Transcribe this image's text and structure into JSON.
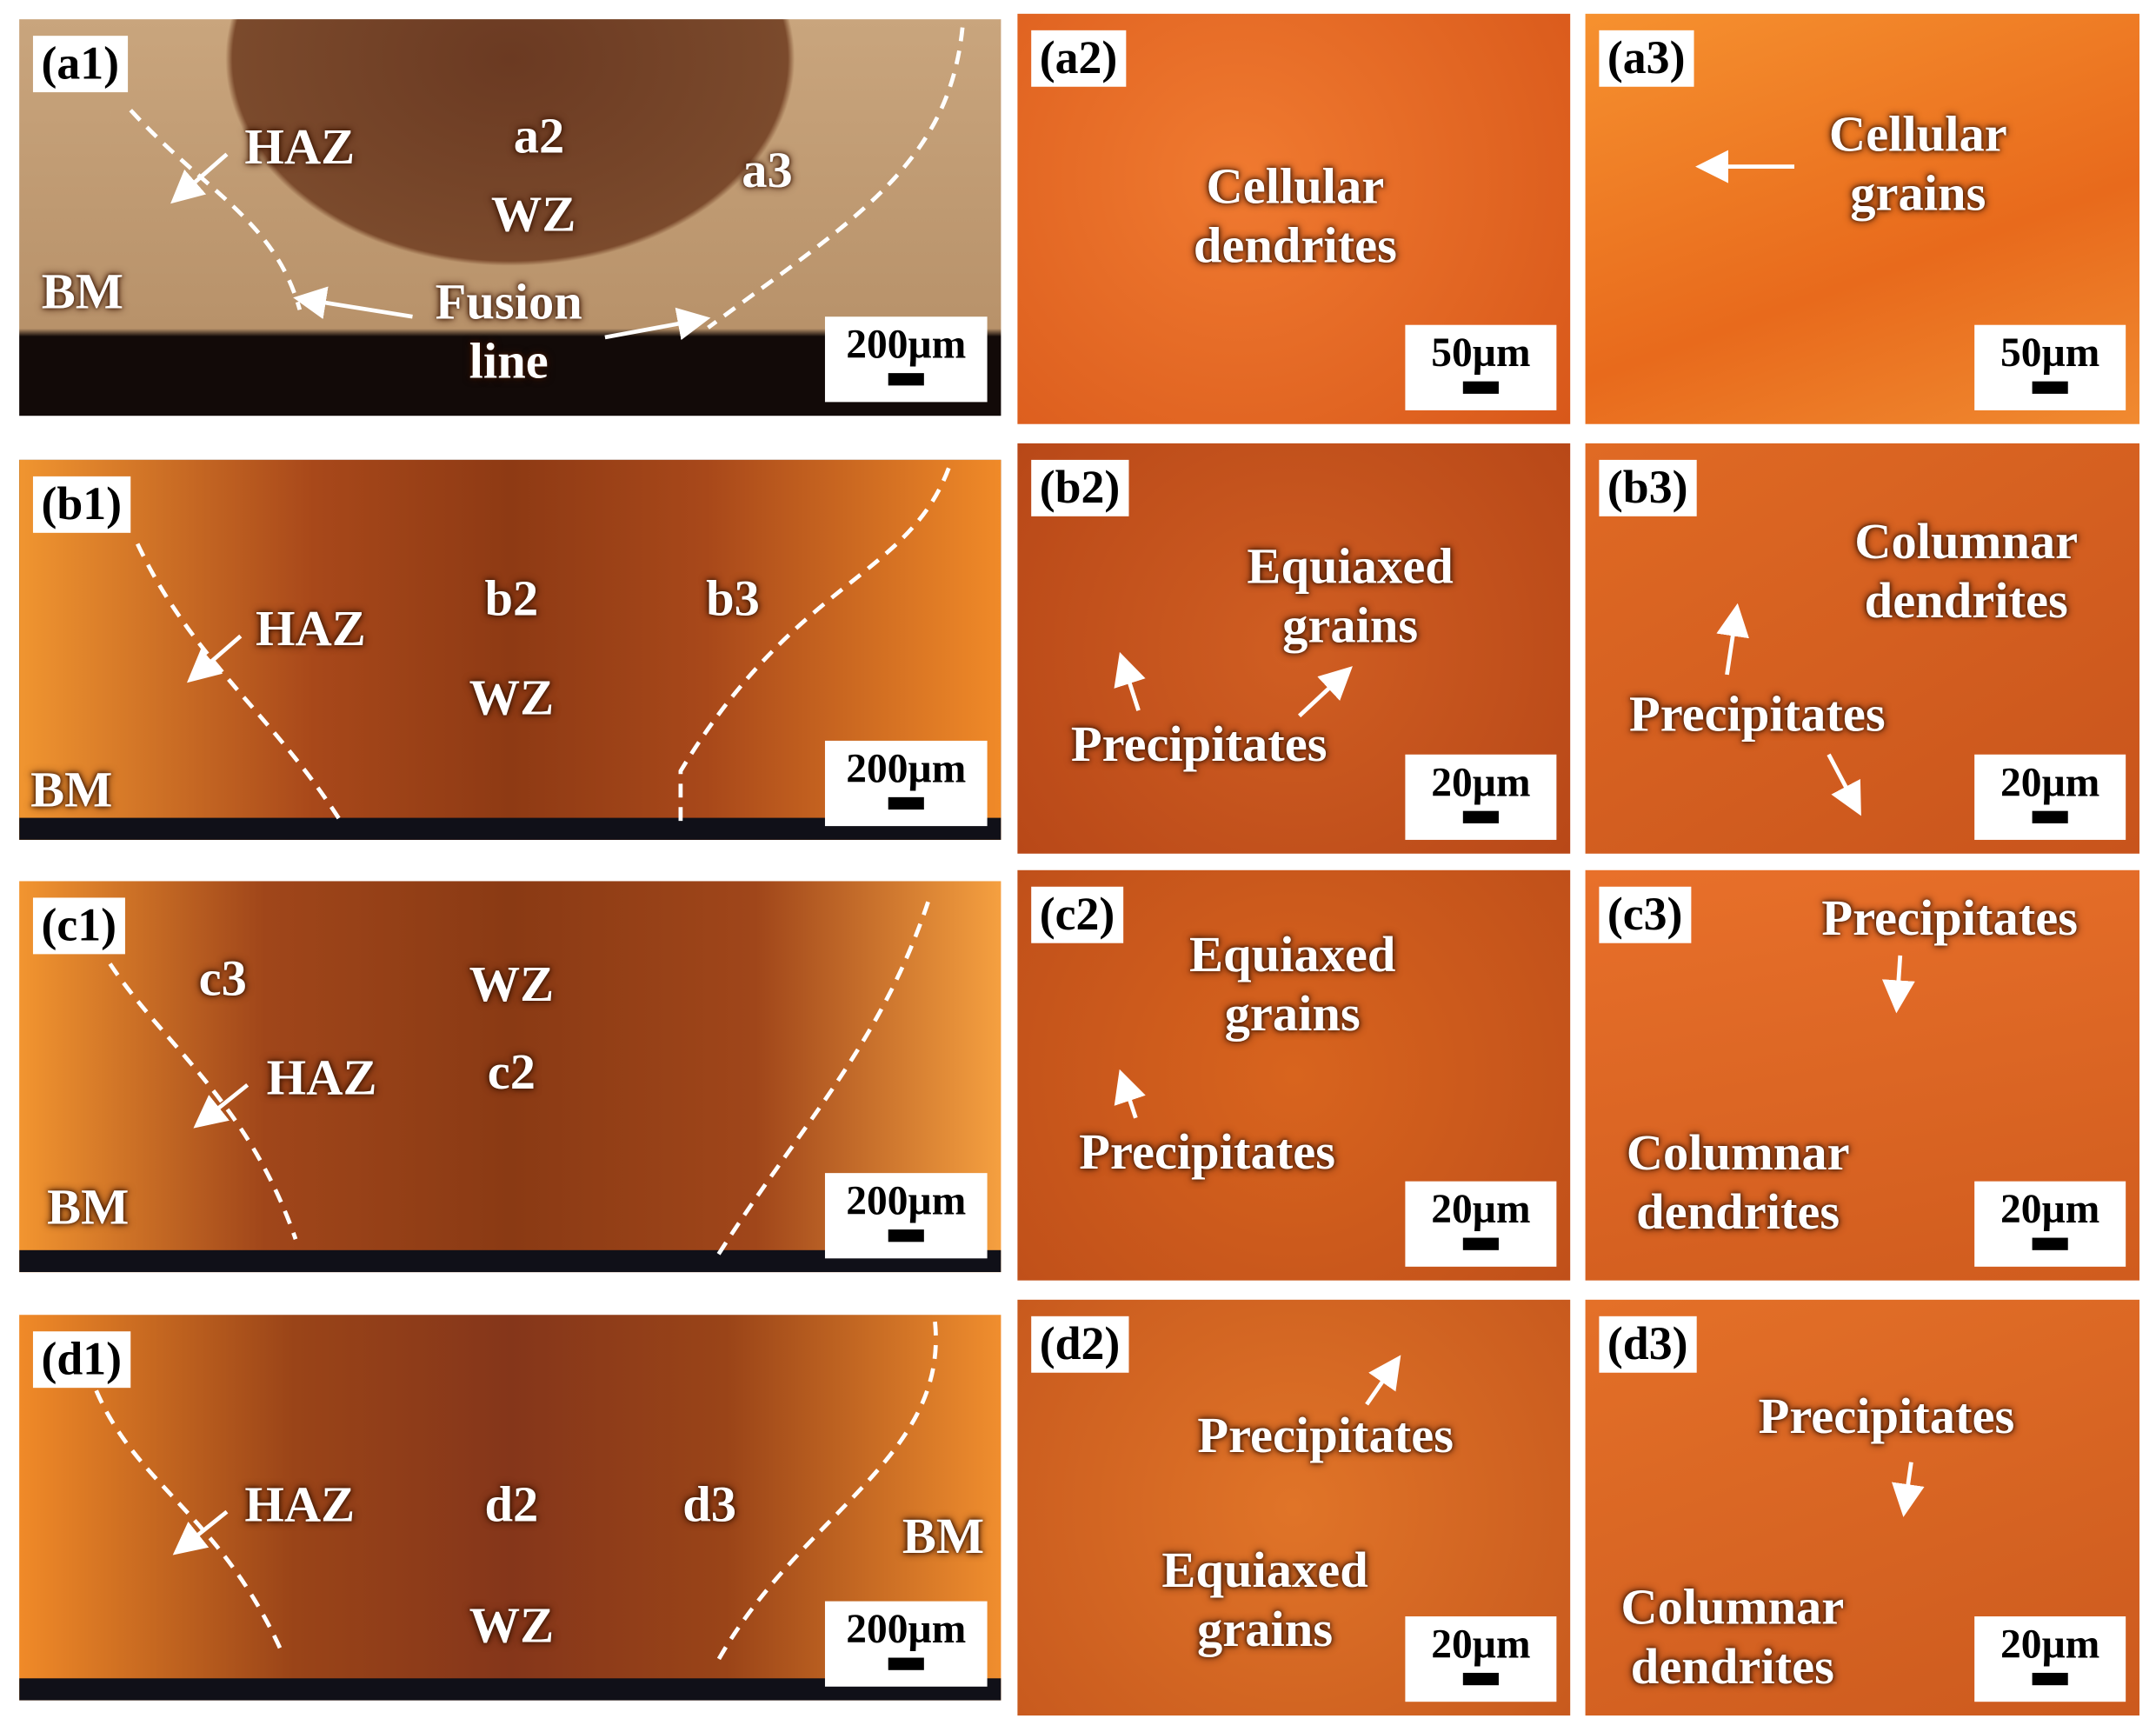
{
  "panels": [
    {
      "label": "(a1)",
      "annotations": [
        "HAZ",
        "a2",
        "WZ",
        "a3",
        "BM",
        "Fusion\nline"
      ],
      "scale_bar": "200µm"
    },
    {
      "label": "(a2)",
      "annotations": [
        "Cellular\ndendrites"
      ],
      "scale_bar": "50µm"
    },
    {
      "label": "(a3)",
      "annotations": [
        "Cellular\ngrains"
      ],
      "scale_bar": "50µm"
    },
    {
      "label": "(b1)",
      "annotations": [
        "HAZ",
        "b2",
        "b3",
        "WZ",
        "BM"
      ],
      "scale_bar": "200µm"
    },
    {
      "label": "(b2)",
      "annotations": [
        "Equiaxed\ngrains",
        "Precipitates"
      ],
      "scale_bar": "20µm"
    },
    {
      "label": "(b3)",
      "annotations": [
        "Columnar\ndendrites",
        "Precipitates"
      ],
      "scale_bar": "20µm"
    },
    {
      "label": "(c1)",
      "annotations": [
        "c3",
        "WZ",
        "HAZ",
        "c2",
        "BM"
      ],
      "scale_bar": "200µm"
    },
    {
      "label": "(c2)",
      "annotations": [
        "Equiaxed\ngrains",
        "Precipitates"
      ],
      "scale_bar": "20µm"
    },
    {
      "label": "(c3)",
      "annotations": [
        "Precipitates",
        "Columnar\ndendrites"
      ],
      "scale_bar": "20µm"
    },
    {
      "label": "(d1)",
      "annotations": [
        "HAZ",
        "d2",
        "d3",
        "BM",
        "WZ"
      ],
      "scale_bar": "200µm"
    },
    {
      "label": "(d2)",
      "annotations": [
        "Precipitates",
        "Equiaxed\ngrains"
      ],
      "scale_bar": "20µm"
    },
    {
      "label": "(d3)",
      "annotations": [
        "Precipitates",
        "Columnar\ndendrites"
      ],
      "scale_bar": "20µm"
    }
  ]
}
